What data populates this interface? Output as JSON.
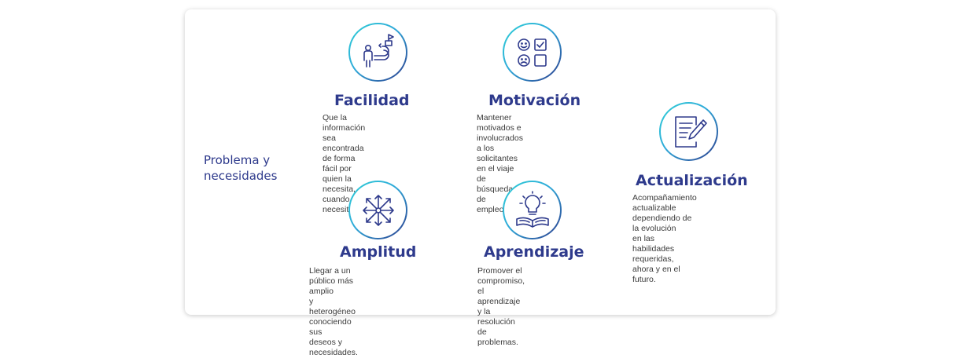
{
  "side_title": "Problema y\nnecesidades",
  "colors": {
    "navy": "#2e3a8c",
    "teal": "#2fd0d6",
    "text": "#3a3a3a"
  },
  "items": [
    {
      "icon": "journey-flag-icon",
      "title": "Facilidad",
      "text": "Que la información sea\nencontrada de forma fácil por\nquien la necesita, cuando la\nnecesita."
    },
    {
      "icon": "feedback-checklist-icon",
      "title": "Motivación",
      "text": "Mantener motivados e\ninvolucrados a los solicitantes\nen el viaje de búsqueda de\nempleo."
    },
    {
      "icon": "expand-arrows-icon",
      "title": "Amplitud",
      "text": "Llegar a un público más amplio\ny heterogéneo conociendo sus\ndeseos y necesidades."
    },
    {
      "icon": "lightbulb-book-icon",
      "title": "Aprendizaje",
      "text": "Promover el compromiso, el\naprendizaje y la resolución de\nproblemas."
    },
    {
      "icon": "document-pencil-icon",
      "title": "Actualización",
      "text": "Acompañamiento actualizable\ndependiendo de la evolución\nen las habilidades requeridas,\nahora y en el futuro."
    }
  ]
}
